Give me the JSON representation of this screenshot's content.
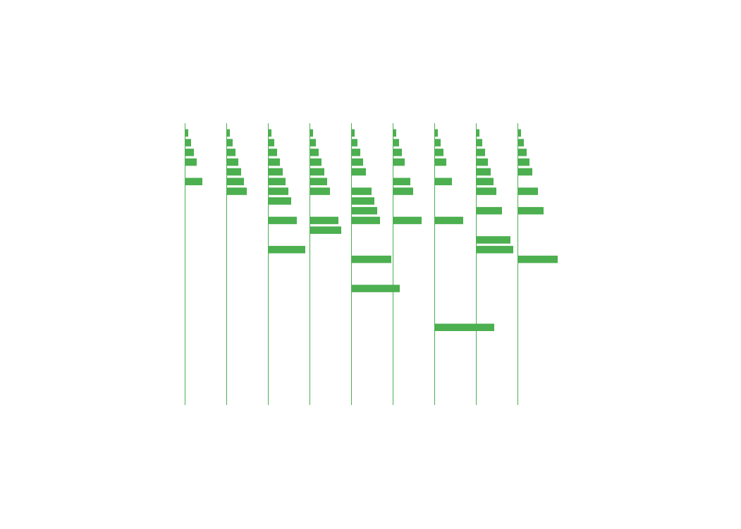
{
  "chart_data": {
    "type": "bar",
    "orientation": "horizontal",
    "layout": "small-multiples",
    "color": "#4caf50",
    "grid": false,
    "legend": "none",
    "title": "",
    "xlabel": "",
    "ylabel": "",
    "row_count": 28,
    "xlim": [
      0,
      20
    ],
    "panels": [
      {
        "bars": [
          [
            0,
            1
          ],
          [
            1,
            2
          ],
          [
            2,
            3
          ],
          [
            3,
            4
          ],
          [
            5,
            6
          ]
        ]
      },
      {
        "bars": [
          [
            0,
            1
          ],
          [
            1,
            2
          ],
          [
            2,
            3
          ],
          [
            3,
            4
          ],
          [
            4,
            5
          ],
          [
            5,
            6
          ],
          [
            6,
            7
          ]
        ]
      },
      {
        "bars": [
          [
            0,
            1
          ],
          [
            1,
            2
          ],
          [
            2,
            3
          ],
          [
            3,
            4
          ],
          [
            4,
            5
          ],
          [
            5,
            6
          ],
          [
            6,
            7
          ],
          [
            7,
            8
          ],
          [
            9,
            10
          ],
          [
            12,
            13
          ]
        ]
      },
      {
        "bars": [
          [
            0,
            1
          ],
          [
            1,
            2
          ],
          [
            2,
            3
          ],
          [
            3,
            4
          ],
          [
            4,
            5
          ],
          [
            5,
            6
          ],
          [
            6,
            7
          ],
          [
            9,
            10
          ],
          [
            10,
            11
          ]
        ]
      },
      {
        "bars": [
          [
            0,
            1
          ],
          [
            1,
            2
          ],
          [
            2,
            3
          ],
          [
            3,
            4
          ],
          [
            4,
            5
          ],
          [
            6,
            7
          ],
          [
            7,
            8
          ],
          [
            8,
            9
          ],
          [
            9,
            10
          ],
          [
            13,
            14
          ],
          [
            16,
            17
          ]
        ]
      },
      {
        "bars": [
          [
            0,
            1
          ],
          [
            1,
            2
          ],
          [
            2,
            3
          ],
          [
            3,
            4
          ],
          [
            5,
            6
          ],
          [
            6,
            7
          ],
          [
            9,
            10
          ]
        ]
      },
      {
        "bars": [
          [
            0,
            1
          ],
          [
            1,
            2
          ],
          [
            2,
            3
          ],
          [
            3,
            4
          ],
          [
            5,
            6
          ],
          [
            9,
            10
          ],
          [
            20,
            21
          ]
        ]
      },
      {
        "bars": [
          [
            0,
            1
          ],
          [
            1,
            2
          ],
          [
            2,
            3
          ],
          [
            3,
            4
          ],
          [
            4,
            5
          ],
          [
            5,
            6
          ],
          [
            6,
            7
          ],
          [
            8,
            9
          ],
          [
            11,
            12
          ],
          [
            12,
            13
          ]
        ]
      },
      {
        "bars": [
          [
            0,
            1
          ],
          [
            1,
            2
          ],
          [
            2,
            3
          ],
          [
            3,
            4
          ],
          [
            4,
            5
          ],
          [
            6,
            7
          ],
          [
            8,
            9
          ],
          [
            13,
            14
          ]
        ]
      }
    ]
  }
}
